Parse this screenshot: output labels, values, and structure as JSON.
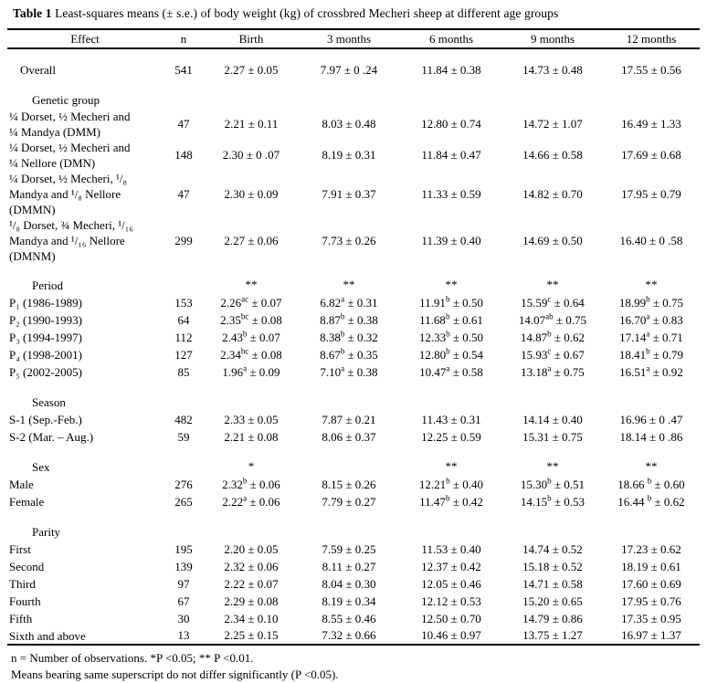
{
  "title": {
    "bold": "Table 1",
    "rest": " Least-squares means (± s.e.) of body weight (kg) of crossbred Mecheri sheep at different age groups"
  },
  "table": {
    "columns": [
      "Effect",
      "n",
      "Birth",
      "3 months",
      "6 months",
      "9 months",
      "12 months"
    ],
    "rows": [
      {
        "t": "spacer"
      },
      {
        "t": "row",
        "ind": 1,
        "label": "Overall",
        "cells": [
          "541",
          "2.27 ± 0.05",
          "7.97 ± 0 .24",
          "11.84 ± 0.38",
          "14.73 ± 0.48",
          "17.55 ± 0.56"
        ]
      },
      {
        "t": "spacer"
      },
      {
        "t": "cat",
        "label": "Genetic group",
        "cells": [
          "",
          "",
          "",
          "",
          "",
          ""
        ]
      },
      {
        "t": "row",
        "ind": 0,
        "label": "¼ Dorset, ½ Mecheri and\n¼ Mandya  (DMM)",
        "cells": [
          "47",
          "2.21 ± 0.11",
          "8.03 ± 0.48",
          "12.80 ± 0.74",
          "14.72 ± 1.07",
          "16.49 ± 1.33"
        ]
      },
      {
        "t": "row",
        "ind": 0,
        "label": "¼ Dorset, ½ Mecheri and\n¼ Nellore  (DMN)",
        "cells": [
          "148",
          "2.30 ± 0 .07",
          "8.19 ± 0.31",
          "11.84 ± 0.47",
          "14.66 ± 0.58",
          "17.69 ± 0.68"
        ]
      },
      {
        "t": "row",
        "ind": 0,
        "label": "¼ Dorset, ½  Mecheri, ¹/₈\nMandya and ¹/₈ Nellore\n(DMMN)",
        "cells": [
          "47",
          "2.30 ± 0.09",
          "7.91 ± 0.37",
          "11.33 ± 0.59",
          "14.82 ± 0.70",
          "17.95 ± 0.79"
        ]
      },
      {
        "t": "row",
        "ind": 0,
        "label": "¹/₈ Dorset,  ¾ Mecheri, ¹/₁₆\nMandya and ¹/₁₆ Nellore\n(DMNM)",
        "cells": [
          "299",
          "2.27 ± 0.06",
          "7.73 ± 0.26",
          "11.39 ± 0.40",
          "14.69 ± 0.50",
          "16.40 ± 0 .58"
        ]
      },
      {
        "t": "spacer"
      },
      {
        "t": "cat",
        "label": "Period",
        "cells": [
          "",
          "**",
          "**",
          "**",
          "**",
          "**"
        ]
      },
      {
        "t": "row",
        "ind": 0,
        "label": "P₁ (1986-1989)",
        "cells": [
          "153",
          "2.26^{ac} ± 0.07",
          "6.82^{a} ± 0.31",
          "11.91^{b} ± 0.50",
          "15.59^{c} ± 0.64",
          "18.99^{b} ± 0.75"
        ]
      },
      {
        "t": "row",
        "ind": 0,
        "label": "P₂ (1990-1993)",
        "cells": [
          "64",
          "2.35^{bc} ± 0.08",
          "8.87^{b} ± 0.38",
          "11.68^{b} ± 0.61",
          "14.07^{ab} ± 0.75",
          "16.70^{a} ± 0.83"
        ]
      },
      {
        "t": "row",
        "ind": 0,
        "label": "P₃ (1994-1997)",
        "cells": [
          "112",
          "2.43^{b} ± 0.07",
          "8.38^{b} ± 0.32",
          "12.33^{b} ± 0.50",
          "14.87^{b} ± 0.62",
          "17.14^{a} ± 0.71"
        ]
      },
      {
        "t": "row",
        "ind": 0,
        "label": "P₄ (1998-2001)",
        "cells": [
          "127",
          "2.34^{bc} ± 0.08",
          "8.67^{b} ± 0.35",
          "12.80^{b} ± 0.54",
          "15.93^{c} ± 0.67",
          "18.41^{b} ± 0.79"
        ]
      },
      {
        "t": "row",
        "ind": 0,
        "label": "P₅ (2002-2005)",
        "cells": [
          "85",
          "1.96^{a} ± 0.09",
          "7.10^{a} ± 0.38",
          "10.47^{a} ± 0.58",
          "13.18^{a} ± 0.75",
          "16.51^{a} ± 0.92"
        ]
      },
      {
        "t": "spacer"
      },
      {
        "t": "cat",
        "label": "Season",
        "cells": [
          "",
          "",
          "",
          "",
          "",
          ""
        ]
      },
      {
        "t": "row",
        "ind": 0,
        "label": "S-1 (Sep.-Feb.)",
        "cells": [
          "482",
          "2.33 ± 0.05",
          "7.87 ± 0.21",
          "11.43 ± 0.31",
          "14.14 ± 0.40",
          "16.96 ± 0 .47"
        ]
      },
      {
        "t": "row",
        "ind": 0,
        "label": "S-2 (Mar. – Aug.)",
        "cells": [
          "59",
          "2.21 ± 0.08",
          "8.06 ± 0.37",
          "12.25 ± 0.59",
          "15.31 ± 0.75",
          "18.14 ± 0 .86"
        ]
      },
      {
        "t": "spacer"
      },
      {
        "t": "cat",
        "label": "Sex",
        "cells": [
          "",
          "*",
          "",
          "**",
          "**",
          "**"
        ]
      },
      {
        "t": "row",
        "ind": 0,
        "label": "Male",
        "cells": [
          "276",
          "2.32^{b} ± 0.06",
          "8.15 ± 0.26",
          "12.21^{b} ± 0.40",
          "15.30^{b} ± 0.51",
          "18.66 ^{b} ± 0.60"
        ]
      },
      {
        "t": "row",
        "ind": 0,
        "label": "Female",
        "cells": [
          "265",
          "2.22^{a} ± 0.06",
          "7.79 ± 0.27",
          "11.47^{b} ± 0.42",
          "14.15^{b} ± 0.53",
          "16.44 ^{b} ± 0.62"
        ]
      },
      {
        "t": "spacer"
      },
      {
        "t": "cat",
        "label": "Parity",
        "cells": [
          "",
          "",
          "",
          "",
          "",
          ""
        ]
      },
      {
        "t": "row",
        "ind": 0,
        "label": "First",
        "cells": [
          "195",
          "2.20 ± 0.05",
          "7.59 ± 0.25",
          "11.53 ± 0.40",
          "14.74 ± 0.52",
          "17.23 ± 0.62"
        ]
      },
      {
        "t": "row",
        "ind": 0,
        "label": "Second",
        "cells": [
          "139",
          "2.32 ± 0.06",
          "8.11 ± 0.27",
          "12.37 ± 0.42",
          "15.18 ± 0.52",
          "18.19 ± 0.61"
        ]
      },
      {
        "t": "row",
        "ind": 0,
        "label": "Third",
        "cells": [
          "97",
          "2.22 ± 0.07",
          "8.04 ± 0.30",
          "12.05 ± 0.46",
          "14.71 ± 0.58",
          "17.60 ± 0.69"
        ]
      },
      {
        "t": "row",
        "ind": 0,
        "label": "Fourth",
        "cells": [
          "67",
          "2.29 ± 0.08",
          "8.19 ± 0.34",
          "12.12 ± 0.53",
          "15.20 ± 0.65",
          "17.95 ± 0.76"
        ]
      },
      {
        "t": "row",
        "ind": 0,
        "label": "Fifth",
        "cells": [
          "30",
          "2.34 ± 0.10",
          "8.55 ± 0.46",
          "12.50 ± 0.70",
          "14.79 ± 0.86",
          "17.35 ± 0.95"
        ]
      },
      {
        "t": "row",
        "ind": 0,
        "label": "Sixth and above",
        "cells": [
          "13",
          "2.25 ± 0.15",
          "7.32 ± 0.66",
          "10.46 ± 0.97",
          "13.75 ± 1.27",
          "16.97 ± 1.37"
        ]
      }
    ]
  },
  "footnotes": {
    "line1": "n = Number of observations. *P <0.05; ** P <0.01.",
    "line2": "Means bearing same superscript do not differ significantly (P <0.05)."
  }
}
